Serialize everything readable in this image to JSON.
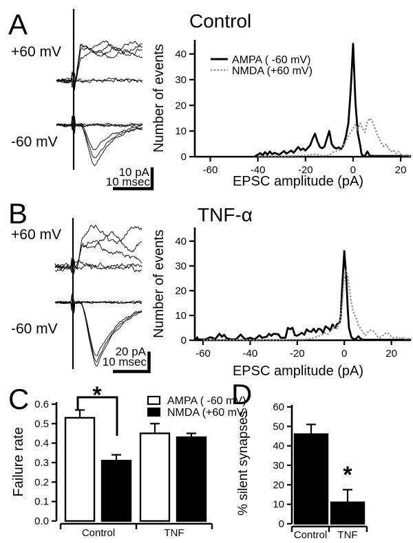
{
  "colors": {
    "ink": "#000000",
    "nmda_dotted": "#8c8c8c",
    "background": "#ffffff"
  },
  "panel_a": {
    "label": "A",
    "traces": {
      "top_voltage": "+60 mV",
      "bottom_voltage": "-60 mV",
      "scale_vertical": "10 pA",
      "scale_horizontal": "10 msec"
    }
  },
  "panel_b": {
    "label": "B",
    "traces": {
      "top_voltage": "+60 mV",
      "bottom_voltage": "-60 mV",
      "scale_vertical": "20 pA",
      "scale_horizontal": "10 msec"
    }
  },
  "panel_c": {
    "label": "C"
  },
  "panel_d": {
    "label": "D"
  },
  "chart_data": [
    {
      "panel": "A",
      "type": "line",
      "title": "Control",
      "xlabel": "EPSC amplitude (pA)",
      "ylabel": "Number of events",
      "xlim": [
        -66.5,
        24.3
      ],
      "ylim": [
        0,
        45.5
      ],
      "xticks": [
        -60,
        -40,
        -20,
        0,
        20
      ],
      "yticks": [
        0,
        10,
        20,
        30,
        40
      ],
      "legend_position": "upper-left",
      "series": [
        {
          "name": "AMPA  ( -60 mV)",
          "line": "solid",
          "color": "#000000",
          "points": [
            [
              -41,
              0.3
            ],
            [
              -40,
              0.8
            ],
            [
              -39,
              1.4
            ],
            [
              -38,
              0.6
            ],
            [
              -37,
              1.8
            ],
            [
              -36,
              0.8
            ],
            [
              -35,
              2
            ],
            [
              -34,
              1
            ],
            [
              -33,
              1.5
            ],
            [
              -31,
              0.8
            ],
            [
              -29,
              2.2
            ],
            [
              -28,
              1.2
            ],
            [
              -26,
              2.4
            ],
            [
              -25,
              1.5
            ],
            [
              -23,
              3.8
            ],
            [
              -22,
              2.6
            ],
            [
              -21,
              3.2
            ],
            [
              -20,
              2.4
            ],
            [
              -18,
              4.5
            ],
            [
              -17,
              7
            ],
            [
              -16,
              9
            ],
            [
              -15,
              6
            ],
            [
              -14,
              3.8
            ],
            [
              -13,
              3.3
            ],
            [
              -12,
              4
            ],
            [
              -11,
              7
            ],
            [
              -10,
              10
            ],
            [
              -9,
              5
            ],
            [
              -8,
              3.6
            ],
            [
              -7,
              3.2
            ],
            [
              -6,
              3.6
            ],
            [
              -5,
              3
            ],
            [
              -4,
              4.5
            ],
            [
              -3,
              8
            ],
            [
              -2,
              13
            ],
            [
              -1,
              26
            ],
            [
              0,
              44
            ],
            [
              1,
              21
            ],
            [
              2,
              9
            ],
            [
              3,
              4.5
            ],
            [
              3.5,
              1.2
            ],
            [
              4,
              0.4
            ],
            [
              5,
              0.4
            ],
            [
              6,
              2
            ],
            [
              7,
              0.4
            ],
            [
              9,
              0.3
            ],
            [
              12,
              0.3
            ],
            [
              16,
              0.3
            ],
            [
              20,
              0.3
            ],
            [
              24,
              0.3
            ]
          ]
        },
        {
          "name": "NMDA  (+60 mV)",
          "line": "dotted",
          "color": "#8c8c8c",
          "points": [
            [
              -40,
              0.2
            ],
            [
              -30,
              0.2
            ],
            [
              -20,
              0.5
            ],
            [
              -16,
              1
            ],
            [
              -13,
              0.4
            ],
            [
              -10,
              0.6
            ],
            [
              -8,
              2
            ],
            [
              -6,
              2.5
            ],
            [
              -5,
              3.5
            ],
            [
              -4,
              4.5
            ],
            [
              -3,
              6
            ],
            [
              -2,
              8
            ],
            [
              -1,
              9.5
            ],
            [
              0,
              11
            ],
            [
              1,
              12.5
            ],
            [
              2,
              10.5
            ],
            [
              3,
              13
            ],
            [
              4,
              11
            ],
            [
              5,
              9.5
            ],
            [
              6,
              13.5
            ],
            [
              7,
              15
            ],
            [
              8,
              14
            ],
            [
              9,
              11.5
            ],
            [
              10,
              9
            ],
            [
              11,
              7
            ],
            [
              12,
              5
            ],
            [
              13,
              4
            ],
            [
              14,
              4.8
            ],
            [
              15,
              3
            ],
            [
              16,
              2
            ],
            [
              17,
              2.6
            ],
            [
              18,
              1.2
            ],
            [
              19,
              2
            ],
            [
              20,
              1
            ],
            [
              21,
              0.5
            ],
            [
              22,
              0.3
            ],
            [
              22.8,
              0.8
            ],
            [
              23.5,
              0.3
            ],
            [
              24,
              0.5
            ]
          ]
        }
      ]
    },
    {
      "panel": "B",
      "type": "line",
      "title": "TNF-α",
      "xlabel": "EPSC amplitude (pA)",
      "ylabel": "Number of events",
      "xlim": [
        -63.5,
        28.3
      ],
      "ylim": [
        0,
        45.5
      ],
      "xticks": [
        -60,
        -40,
        -20,
        0,
        20
      ],
      "yticks": [
        0,
        10,
        20,
        30,
        40
      ],
      "series": [
        {
          "name": "AMPA ( -60 mV)",
          "line": "solid",
          "color": "#000000",
          "points": [
            [
              -63,
              0.3
            ],
            [
              -62.5,
              1.2
            ],
            [
              -62,
              0.3
            ],
            [
              -59,
              0.3
            ],
            [
              -57,
              1.2
            ],
            [
              -56,
              1
            ],
            [
              -55,
              0.3
            ],
            [
              -53,
              2.6
            ],
            [
              -52,
              1.4
            ],
            [
              -51,
              2.2
            ],
            [
              -50,
              0.8
            ],
            [
              -48,
              0.3
            ],
            [
              -46,
              0.4
            ],
            [
              -44,
              2.3
            ],
            [
              -43,
              1.2
            ],
            [
              -42,
              0.4
            ],
            [
              -40,
              1
            ],
            [
              -38,
              0.4
            ],
            [
              -36,
              2
            ],
            [
              -35,
              1
            ],
            [
              -33,
              1.4
            ],
            [
              -32,
              2.6
            ],
            [
              -31,
              1.8
            ],
            [
              -30,
              2.6
            ],
            [
              -28,
              2.4
            ],
            [
              -27,
              1
            ],
            [
              -25,
              1
            ],
            [
              -24,
              5
            ],
            [
              -23,
              4.4
            ],
            [
              -22,
              5
            ],
            [
              -21,
              2
            ],
            [
              -20,
              1.8
            ],
            [
              -18,
              3
            ],
            [
              -17,
              2.2
            ],
            [
              -16,
              4.4
            ],
            [
              -15,
              3.6
            ],
            [
              -14,
              3.4
            ],
            [
              -13,
              4.6
            ],
            [
              -12,
              3.2
            ],
            [
              -11,
              4.6
            ],
            [
              -10,
              4.4
            ],
            [
              -9,
              3
            ],
            [
              -8,
              5.6
            ],
            [
              -7,
              5
            ],
            [
              -6,
              4
            ],
            [
              -5,
              6.4
            ],
            [
              -4,
              5
            ],
            [
              -3,
              6.6
            ],
            [
              -2,
              7
            ],
            [
              -1.5,
              10
            ],
            [
              -1,
              20
            ],
            [
              0,
              36
            ],
            [
              0.8,
              26
            ],
            [
              1.5,
              12
            ],
            [
              2,
              5
            ],
            [
              3,
              1.2
            ],
            [
              4,
              0.4
            ],
            [
              5,
              0.6
            ],
            [
              6,
              1.6
            ],
            [
              7,
              0.6
            ],
            [
              8,
              0.2
            ],
            [
              12,
              0.2
            ],
            [
              18,
              0.2
            ],
            [
              24,
              0.2
            ],
            [
              28,
              0.2
            ]
          ]
        },
        {
          "name": "NMDA (+60 mV)",
          "line": "dotted",
          "color": "#8c8c8c",
          "points": [
            [
              -60,
              0.15
            ],
            [
              -40,
              0.15
            ],
            [
              -25,
              0.15
            ],
            [
              -17,
              0.3
            ],
            [
              -15,
              0.6
            ],
            [
              -13,
              1
            ],
            [
              -11,
              1.6
            ],
            [
              -9,
              2.4
            ],
            [
              -8,
              3
            ],
            [
              -7,
              2.4
            ],
            [
              -6,
              3.6
            ],
            [
              -5,
              4.6
            ],
            [
              -4,
              5.6
            ],
            [
              -3,
              4.6
            ],
            [
              -2,
              7
            ],
            [
              -1,
              14
            ],
            [
              0,
              25
            ],
            [
              0.7,
              28
            ],
            [
              1.5,
              26
            ],
            [
              2,
              22
            ],
            [
              3,
              15
            ],
            [
              4,
              11
            ],
            [
              5,
              9
            ],
            [
              6,
              6
            ],
            [
              7,
              4.6
            ],
            [
              8,
              3
            ],
            [
              9,
              2
            ],
            [
              10,
              3.2
            ],
            [
              11,
              4
            ],
            [
              12,
              4
            ],
            [
              13,
              3
            ],
            [
              14,
              1.6
            ],
            [
              15,
              1
            ],
            [
              16,
              1.6
            ],
            [
              17,
              2.6
            ],
            [
              18,
              3
            ],
            [
              19,
              2.6
            ],
            [
              20,
              1.4
            ],
            [
              21,
              1
            ],
            [
              22,
              1.2
            ],
            [
              23,
              1
            ],
            [
              24,
              0.6
            ],
            [
              25,
              1
            ],
            [
              26,
              0.5
            ],
            [
              27,
              0.8
            ],
            [
              28,
              0.3
            ]
          ]
        }
      ]
    },
    {
      "panel": "C",
      "type": "bar",
      "ylabel": "Failure rate",
      "ylim": [
        0,
        0.6
      ],
      "yticks": [
        "0.0",
        "0.1",
        "0.2",
        "0.3",
        "0.4",
        "0.5",
        "0.6"
      ],
      "categories": [
        "Control",
        "TNF"
      ],
      "series": [
        {
          "name": "AMPA ( -60 mV)",
          "fill": "#ffffff",
          "values": [
            0.53,
            0.45
          ],
          "errors": [
            0.04,
            0.05
          ]
        },
        {
          "name": "NMDA (+60 mV)",
          "fill": "#000000",
          "values": [
            0.31,
            0.43
          ],
          "errors": [
            0.03,
            0.02
          ]
        }
      ],
      "significance": {
        "marker": "*",
        "comparison": "Control AMPA vs Control NMDA"
      }
    },
    {
      "panel": "D",
      "type": "bar",
      "ylabel": "% silent synapses",
      "ylim": [
        0,
        60
      ],
      "yticks": [
        "0",
        "10",
        "20",
        "30",
        "40",
        "50",
        "60"
      ],
      "categories": [
        "Control",
        "TNF"
      ],
      "series": [
        {
          "name": "% silent synapses",
          "fill": "#000000",
          "values": [
            46,
            11
          ],
          "errors": [
            5,
            6.5
          ]
        }
      ],
      "significance": {
        "marker": "*",
        "on": "TNF"
      }
    }
  ]
}
